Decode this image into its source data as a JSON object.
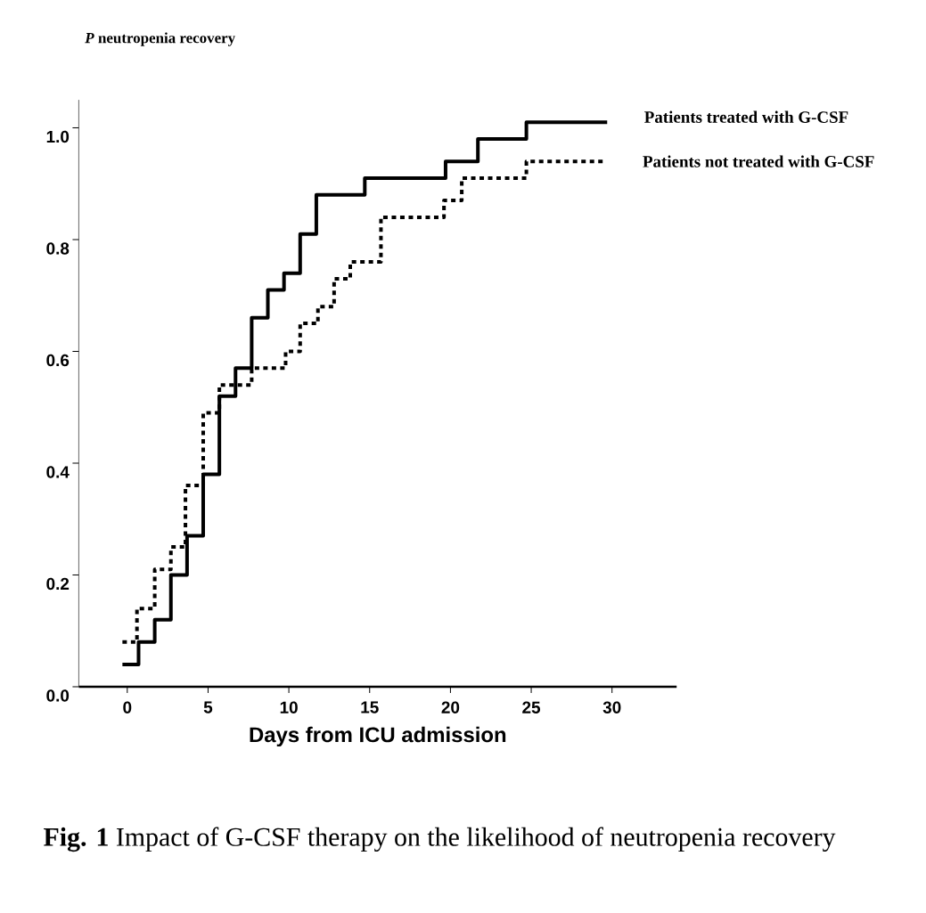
{
  "chart_data": {
    "type": "step",
    "ylabel": "*P* neutropenia recovery",
    "xlabel": "Days from ICU admission",
    "annotations": [
      "**Fig. 1** Impact of G-CSF therapy on the likelihood of neutropenia recovery"
    ],
    "xlim": [
      -3,
      34
    ],
    "xticks": [
      0,
      5,
      10,
      15,
      20,
      25,
      30
    ],
    "ylim": [
      0,
      1.05
    ],
    "yticks": [
      {
        "value": 0,
        "label": "0.0"
      },
      0.2,
      0.4,
      0.6,
      0.8,
      {
        "value": 1,
        "label": "1.0"
      }
    ],
    "grid": false,
    "legend": false,
    "marker": "none",
    "series": [
      {
        "name": "Patients treated with G-CSF",
        "color": "#000000",
        "line_style": "solid",
        "x": [
          -0.3,
          0.7,
          1.7,
          2.7,
          3.7,
          4.7,
          5.7,
          6.7,
          7.7,
          8.7,
          9.7,
          10.7,
          11.7,
          14.7,
          19.7,
          21.7,
          24.7,
          29.7
        ],
        "values": [
          0.04,
          0.08,
          0.12,
          0.2,
          0.27,
          0.38,
          0.52,
          0.57,
          0.66,
          0.71,
          0.74,
          0.81,
          0.88,
          0.91,
          0.94,
          0.98,
          1.01,
          1.01
        ]
      },
      {
        "name": "Patients not treated with G-CSF",
        "color": "#000000",
        "line_style": "dotted",
        "x": [
          -0.3,
          0.6,
          1.7,
          2.7,
          3.6,
          4.7,
          5.7,
          7.7,
          9.8,
          10.7,
          11.8,
          12.8,
          13.8,
          15.7,
          19.6,
          20.7,
          24.7,
          29.6
        ],
        "values": [
          0.08,
          0.14,
          0.21,
          0.25,
          0.36,
          0.49,
          0.54,
          0.57,
          0.6,
          0.65,
          0.68,
          0.73,
          0.76,
          0.84,
          0.87,
          0.91,
          0.94,
          0.94
        ]
      }
    ]
  }
}
